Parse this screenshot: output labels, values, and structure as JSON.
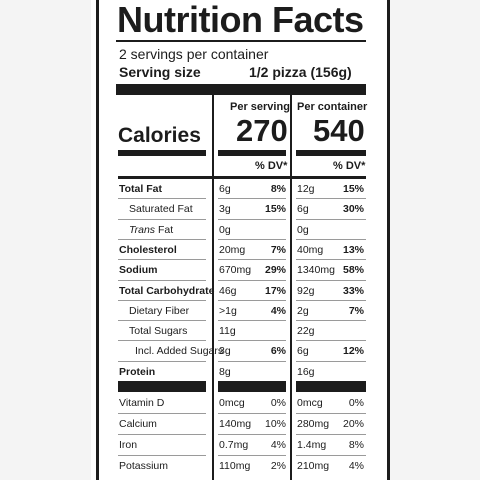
{
  "label": {
    "title": "Nutrition Facts",
    "servings_per_container": "2 servings per container",
    "serving_size_label": "Serving size",
    "serving_size_value": "1/2 pizza (156g)",
    "col_per_serving": "Per serving",
    "col_per_container": "Per container",
    "calories_label": "Calories",
    "calories_per_serving": "270",
    "calories_per_container": "540",
    "dv_header": "% DV*",
    "nutrients": [
      {
        "name": "Total Fat",
        "serving_amount": "6g",
        "serving_dv": "8%",
        "container_amount": "12g",
        "container_dv": "15%"
      },
      {
        "name": "Saturated Fat",
        "serving_amount": "3g",
        "serving_dv": "15%",
        "container_amount": "6g",
        "container_dv": "30%"
      },
      {
        "name_prefix": "Trans",
        "name": " Fat",
        "serving_amount": "0g",
        "serving_dv": "",
        "container_amount": "0g",
        "container_dv": ""
      },
      {
        "name": "Cholesterol",
        "serving_amount": "20mg",
        "serving_dv": "7%",
        "container_amount": "40mg",
        "container_dv": "13%"
      },
      {
        "name": "Sodium",
        "serving_amount": "670mg",
        "serving_dv": "29%",
        "container_amount": "1340mg",
        "container_dv": "58%"
      },
      {
        "name": "Total Carbohydrate",
        "serving_amount": "46g",
        "serving_dv": "17%",
        "container_amount": "92g",
        "container_dv": "33%"
      },
      {
        "name": "Dietary Fiber",
        "serving_amount": ">1g",
        "serving_dv": "4%",
        "container_amount": "2g",
        "container_dv": "7%"
      },
      {
        "name": "Total Sugars",
        "serving_amount": "11g",
        "serving_dv": "",
        "container_amount": "22g",
        "container_dv": ""
      },
      {
        "name": "Incl. Added Sugars",
        "serving_amount": "3g",
        "serving_dv": "6%",
        "container_amount": "6g",
        "container_dv": "12%"
      },
      {
        "name": "Protein",
        "serving_amount": "8g",
        "serving_dv": "",
        "container_amount": "16g",
        "container_dv": ""
      }
    ],
    "vitamins": [
      {
        "name": "Vitamin D",
        "serving_amount": "0mcg",
        "serving_dv": "0%",
        "container_amount": "0mcg",
        "container_dv": "0%"
      },
      {
        "name": "Calcium",
        "serving_amount": "140mg",
        "serving_dv": "10%",
        "container_amount": "280mg",
        "container_dv": "20%"
      },
      {
        "name": "Iron",
        "serving_amount": "0.7mg",
        "serving_dv": "4%",
        "container_amount": "1.4mg",
        "container_dv": "8%"
      },
      {
        "name": "Potassium",
        "serving_amount": "110mg",
        "serving_dv": "2%",
        "container_amount": "210mg",
        "container_dv": "4%"
      }
    ]
  }
}
